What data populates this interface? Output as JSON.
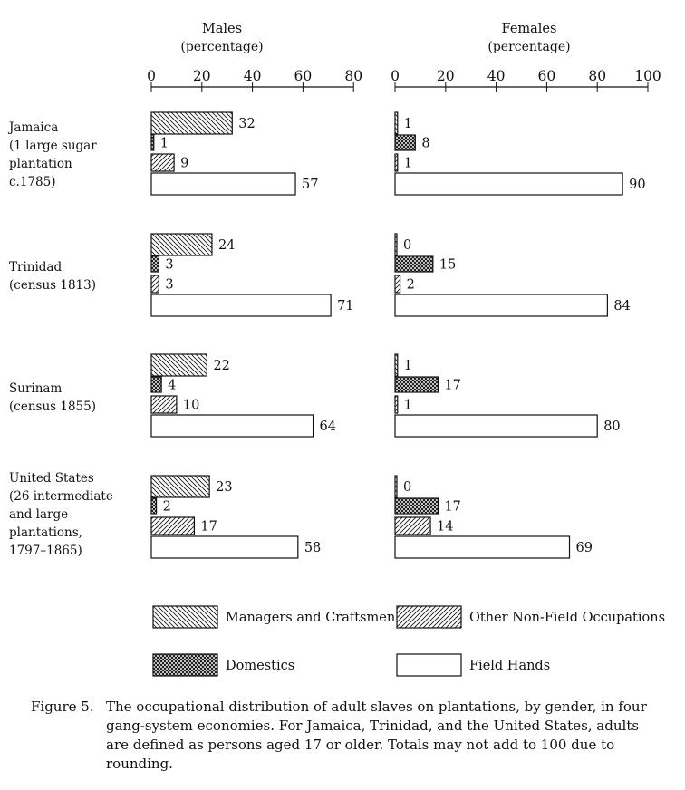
{
  "chart_data": {
    "type": "bar",
    "orientation": "horizontal",
    "groups": [
      {
        "label_lines": [
          "Jamaica",
          "(1 large sugar",
          "plantation",
          "c.1785)"
        ]
      },
      {
        "label_lines": [
          "Trinidad",
          "(census 1813)"
        ]
      },
      {
        "label_lines": [
          "Surinam",
          "(census 1855)"
        ]
      },
      {
        "label_lines": [
          "United States",
          "(26 intermediate",
          "and large",
          "plantations,",
          "1797–1865)"
        ]
      }
    ],
    "categories": [
      "Managers and Craftsmen",
      "Domestics",
      "Other Non-Field Occupations",
      "Field Hands"
    ],
    "panels": [
      {
        "title": "Males",
        "subtitle": "(percentage)",
        "xlim": [
          0,
          80
        ],
        "ticks": [
          0,
          20,
          40,
          60,
          80
        ],
        "values": [
          [
            32,
            1,
            9,
            57
          ],
          [
            24,
            3,
            3,
            71
          ],
          [
            22,
            4,
            10,
            64
          ],
          [
            23,
            2,
            17,
            58
          ]
        ]
      },
      {
        "title": "Females",
        "subtitle": "(percentage)",
        "xlim": [
          0,
          100
        ],
        "ticks": [
          0,
          20,
          40,
          60,
          80,
          100
        ],
        "values": [
          [
            1,
            8,
            1,
            90
          ],
          [
            0,
            15,
            2,
            84
          ],
          [
            1,
            17,
            1,
            80
          ],
          [
            0,
            17,
            14,
            69
          ]
        ]
      }
    ],
    "legend": [
      {
        "label": "Managers and Craftsmen",
        "pattern": "backslash-hatch"
      },
      {
        "label": "Other Non-Field Occupations",
        "pattern": "slash-hatch"
      },
      {
        "label": "Domestics",
        "pattern": "crosshatch"
      },
      {
        "label": "Field Hands",
        "pattern": "blank"
      }
    ],
    "grid": false,
    "legend_position": "bottom"
  },
  "caption": {
    "label": "Figure 5.",
    "text": "The occupational distribution of adult slaves on plantations, by gender, in four gang-system economies. For Jamaica, Trinidad, and the United States, adults are defined as persons aged 17 or older. Totals may not add to 100 due to rounding."
  }
}
